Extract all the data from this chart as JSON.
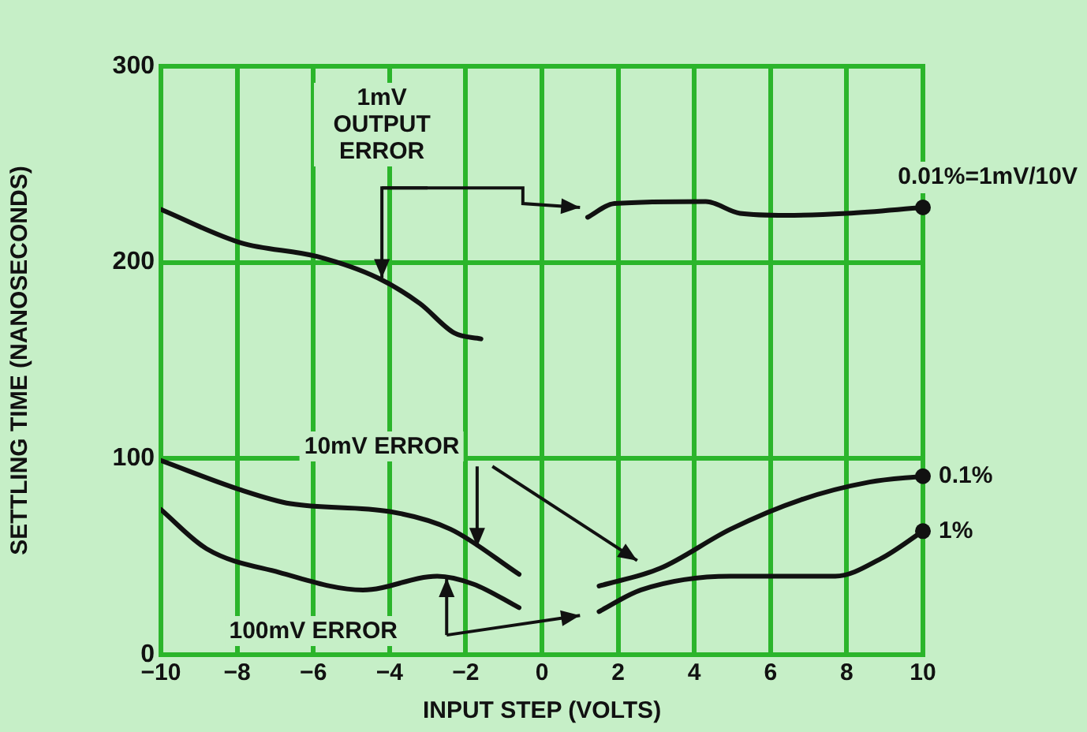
{
  "chart_data": {
    "type": "line",
    "xlabel": "INPUT STEP (VOLTS)",
    "ylabel": "SETTLING TIME (NANOSECONDS)",
    "xlim": [
      -10,
      10
    ],
    "xticks": [
      -10,
      -8,
      -6,
      -4,
      -2,
      0,
      2,
      4,
      6,
      8,
      10
    ],
    "ylim": [
      0,
      300
    ],
    "yticks": [
      0,
      100,
      200,
      300
    ],
    "grid": true,
    "legend": false,
    "marker": "none",
    "line_style": "solid",
    "annotations": [
      {
        "text": "1mV OUTPUT ERROR",
        "x": -4.2,
        "y": 192
      },
      {
        "text": "10mV ERROR",
        "x": -1.7,
        "y": 55
      },
      {
        "text": "100mV ERROR",
        "x": -2.5,
        "y": 39
      }
    ],
    "series": [
      {
        "name": "0.01%=1mV/10V",
        "color": "#111111",
        "x": [
          -10,
          -7.9,
          -5.9,
          -4.3,
          -3.2,
          -2.3,
          -1.6,
          0,
          1.2,
          1.9,
          4.3,
          5.2,
          6.4,
          8,
          10
        ],
        "values": [
          227,
          210,
          203,
          192,
          179,
          164,
          161,
          null,
          223,
          230,
          231,
          225,
          224,
          225,
          228
        ]
      },
      {
        "name": "0.1%",
        "color": "#111111",
        "x": [
          -10,
          -7.9,
          -6.6,
          -4,
          -2.4,
          -0.6,
          0,
          1.5,
          3.1,
          4.95,
          6.8,
          8.6,
          10
        ],
        "values": [
          99,
          84,
          77,
          73,
          64,
          41,
          null,
          35,
          44,
          64,
          79,
          88,
          91
        ]
      },
      {
        "name": "1%",
        "color": "#111111",
        "x": [
          -10,
          -8.8,
          -6.9,
          -4.7,
          -2.75,
          -1.8,
          -0.6,
          0,
          1.5,
          2.6,
          4.95,
          7.7,
          8.9,
          10
        ],
        "values": [
          74,
          54,
          42,
          33,
          40,
          36,
          24,
          null,
          22,
          33,
          40,
          40,
          49,
          63
        ]
      }
    ]
  }
}
